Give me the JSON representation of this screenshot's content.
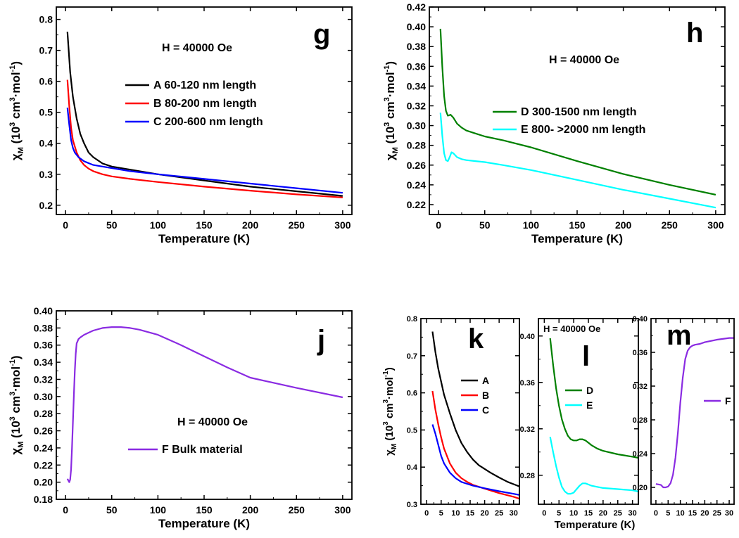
{
  "chart_data": [
    {
      "id": "g",
      "type": "line",
      "panel_label": "g",
      "xlabel": "Temperature (K)",
      "ylabel": "χM (10³ cm³·mol⁻¹)",
      "xlim": [
        -10,
        310
      ],
      "ylim": [
        0.17,
        0.84
      ],
      "xticks": [
        0,
        50,
        100,
        150,
        200,
        250,
        300
      ],
      "yticks": [
        0.2,
        0.3,
        0.4,
        0.5,
        0.6,
        0.7,
        0.8
      ],
      "annotation": "H = 40000 Oe",
      "grid": false,
      "legend": "upper-middle",
      "series": [
        {
          "name": "A 60-120 nm length",
          "color": "#000000",
          "x": [
            2,
            5,
            8,
            12,
            16,
            20,
            25,
            30,
            40,
            50,
            70,
            100,
            150,
            200,
            250,
            300
          ],
          "y": [
            0.76,
            0.63,
            0.55,
            0.48,
            0.43,
            0.4,
            0.37,
            0.355,
            0.335,
            0.325,
            0.315,
            0.3,
            0.28,
            0.26,
            0.245,
            0.23
          ]
        },
        {
          "name": "B 80-200 nm length",
          "color": "#ff0000",
          "x": [
            2,
            4,
            6,
            8,
            12,
            16,
            20,
            25,
            30,
            40,
            50,
            70,
            100,
            150,
            200,
            250,
            300
          ],
          "y": [
            0.605,
            0.52,
            0.45,
            0.41,
            0.37,
            0.345,
            0.33,
            0.318,
            0.31,
            0.3,
            0.293,
            0.285,
            0.275,
            0.26,
            0.247,
            0.235,
            0.225
          ]
        },
        {
          "name": "C 200-600 nm length",
          "color": "#0000ff",
          "x": [
            2,
            4,
            6,
            8,
            10,
            14,
            20,
            30,
            40,
            50,
            70,
            100,
            150,
            200,
            250,
            300
          ],
          "y": [
            0.515,
            0.46,
            0.41,
            0.385,
            0.37,
            0.355,
            0.342,
            0.33,
            0.325,
            0.32,
            0.31,
            0.3,
            0.285,
            0.27,
            0.255,
            0.24
          ]
        }
      ]
    },
    {
      "id": "h",
      "type": "line",
      "panel_label": "h",
      "xlabel": "Temperature (K)",
      "ylabel": "χM (10³ cm³·mol⁻¹)",
      "xlim": [
        -10,
        310
      ],
      "ylim": [
        0.21,
        0.42
      ],
      "xticks": [
        0,
        50,
        100,
        150,
        200,
        250,
        300
      ],
      "yticks": [
        0.22,
        0.24,
        0.26,
        0.28,
        0.3,
        0.32,
        0.34,
        0.36,
        0.38,
        0.4,
        0.42
      ],
      "annotation": "H = 40000 Oe",
      "grid": false,
      "legend": "upper-middle",
      "series": [
        {
          "name": "D 300-1500 nm length",
          "color": "#008000",
          "x": [
            2,
            4,
            6,
            8,
            10,
            13,
            16,
            20,
            25,
            30,
            40,
            50,
            70,
            100,
            150,
            200,
            250,
            300
          ],
          "y": [
            0.398,
            0.36,
            0.33,
            0.315,
            0.31,
            0.311,
            0.308,
            0.302,
            0.298,
            0.295,
            0.292,
            0.289,
            0.285,
            0.278,
            0.264,
            0.251,
            0.24,
            0.23
          ]
        },
        {
          "name": "E 800- >2000 nm length",
          "color": "#00ffff",
          "x": [
            2,
            4,
            6,
            8,
            10,
            12,
            14,
            16,
            20,
            25,
            30,
            40,
            50,
            70,
            100,
            150,
            200,
            250,
            300
          ],
          "y": [
            0.313,
            0.29,
            0.272,
            0.265,
            0.264,
            0.268,
            0.273,
            0.272,
            0.268,
            0.266,
            0.265,
            0.264,
            0.263,
            0.26,
            0.255,
            0.245,
            0.235,
            0.226,
            0.217
          ]
        }
      ]
    },
    {
      "id": "j",
      "type": "line",
      "panel_label": "j",
      "xlabel": "Temperature (K)",
      "ylabel": "χM (10³ cm³·mol⁻¹)",
      "xlim": [
        -10,
        310
      ],
      "ylim": [
        0.18,
        0.4
      ],
      "xticks": [
        0,
        50,
        100,
        150,
        200,
        250,
        300
      ],
      "yticks": [
        0.18,
        0.2,
        0.22,
        0.24,
        0.26,
        0.28,
        0.3,
        0.32,
        0.34,
        0.36,
        0.38,
        0.4
      ],
      "annotation": "H = 40000 Oe",
      "grid": false,
      "legend": "middle",
      "series": [
        {
          "name": "F Bulk material",
          "color": "#8a2be2",
          "x": [
            2,
            4,
            5,
            6,
            7,
            8,
            9,
            10,
            11,
            12,
            14,
            16,
            20,
            30,
            40,
            50,
            60,
            70,
            80,
            100,
            125,
            150,
            175,
            200,
            250,
            300
          ],
          "y": [
            0.204,
            0.2,
            0.203,
            0.215,
            0.24,
            0.27,
            0.3,
            0.33,
            0.35,
            0.362,
            0.367,
            0.369,
            0.372,
            0.377,
            0.38,
            0.381,
            0.381,
            0.38,
            0.378,
            0.372,
            0.36,
            0.347,
            0.334,
            0.322,
            0.31,
            0.299
          ]
        }
      ]
    },
    {
      "id": "k",
      "type": "line",
      "panel_label": "k",
      "xlabel": "",
      "ylabel": "χM (10³ cm³·mol⁻¹)",
      "xlim": [
        -2,
        32
      ],
      "ylim": [
        0.3,
        0.8
      ],
      "xticks": [
        0,
        5,
        10,
        15,
        20,
        25,
        30
      ],
      "yticks": [
        0.3,
        0.4,
        0.5,
        0.6,
        0.7,
        0.8
      ],
      "grid": false,
      "legend": "middle-right",
      "series": [
        {
          "name": "A",
          "color": "#000000",
          "x": [
            2,
            3,
            4,
            5,
            6,
            8,
            10,
            12,
            14,
            16,
            18,
            20,
            22,
            25,
            28,
            30,
            32
          ],
          "y": [
            0.765,
            0.71,
            0.665,
            0.63,
            0.595,
            0.545,
            0.5,
            0.465,
            0.44,
            0.42,
            0.405,
            0.395,
            0.385,
            0.372,
            0.36,
            0.354,
            0.348
          ]
        },
        {
          "name": "B",
          "color": "#ff0000",
          "x": [
            2,
            3,
            4,
            5,
            6,
            8,
            10,
            12,
            14,
            16,
            20,
            25,
            30,
            32
          ],
          "y": [
            0.605,
            0.555,
            0.515,
            0.48,
            0.45,
            0.41,
            0.385,
            0.37,
            0.36,
            0.352,
            0.342,
            0.33,
            0.32,
            0.315
          ]
        },
        {
          "name": "C",
          "color": "#0000ff",
          "x": [
            2,
            3,
            4,
            5,
            6,
            8,
            10,
            12,
            14,
            16,
            20,
            25,
            30,
            32
          ],
          "y": [
            0.515,
            0.49,
            0.46,
            0.43,
            0.41,
            0.385,
            0.37,
            0.36,
            0.355,
            0.35,
            0.343,
            0.335,
            0.328,
            0.325
          ]
        }
      ]
    },
    {
      "id": "l",
      "type": "line",
      "panel_label": "l",
      "xlabel": "Temperature (K)",
      "ylabel": "",
      "xlim": [
        -2,
        32
      ],
      "ylim": [
        0.255,
        0.415
      ],
      "xticks": [
        0,
        5,
        10,
        15,
        20,
        25,
        30
      ],
      "yticks": [
        0.28,
        0.32,
        0.36,
        0.4
      ],
      "annotation": "H = 40000 Oe",
      "grid": false,
      "legend": "upper-middle",
      "series": [
        {
          "name": "D",
          "color": "#008000",
          "x": [
            2,
            3,
            4,
            5,
            6,
            7,
            8,
            9,
            10,
            11,
            12,
            13,
            14,
            15,
            16,
            18,
            20,
            25,
            30,
            32
          ],
          "y": [
            0.398,
            0.375,
            0.355,
            0.34,
            0.328,
            0.32,
            0.314,
            0.311,
            0.31,
            0.31,
            0.311,
            0.311,
            0.31,
            0.308,
            0.306,
            0.303,
            0.301,
            0.298,
            0.296,
            0.295
          ]
        },
        {
          "name": "E",
          "color": "#00ffff",
          "x": [
            2,
            3,
            4,
            5,
            6,
            7,
            8,
            9,
            10,
            11,
            12,
            13,
            14,
            15,
            16,
            18,
            20,
            25,
            30,
            32
          ],
          "y": [
            0.313,
            0.3,
            0.288,
            0.278,
            0.27,
            0.266,
            0.264,
            0.264,
            0.265,
            0.268,
            0.271,
            0.273,
            0.273,
            0.272,
            0.271,
            0.27,
            0.269,
            0.268,
            0.267,
            0.266
          ]
        }
      ]
    },
    {
      "id": "m",
      "type": "line",
      "panel_label": "m",
      "xlabel": "",
      "ylabel": "",
      "xlim": [
        -2,
        32
      ],
      "ylim": [
        0.18,
        0.4
      ],
      "xticks": [
        0,
        5,
        10,
        15,
        20,
        25,
        30
      ],
      "yticks": [
        0.2,
        0.24,
        0.28,
        0.32,
        0.36,
        0.4
      ],
      "grid": false,
      "legend": "middle-right",
      "series": [
        {
          "name": "F",
          "color": "#8a2be2",
          "x": [
            0,
            2,
            3,
            4,
            5,
            6,
            7,
            8,
            9,
            10,
            11,
            12,
            13,
            14,
            15,
            16,
            18,
            20,
            25,
            30,
            32
          ],
          "y": [
            0.204,
            0.203,
            0.2,
            0.2,
            0.201,
            0.205,
            0.215,
            0.235,
            0.265,
            0.3,
            0.33,
            0.352,
            0.362,
            0.366,
            0.368,
            0.369,
            0.37,
            0.372,
            0.375,
            0.377,
            0.377
          ]
        }
      ]
    }
  ]
}
